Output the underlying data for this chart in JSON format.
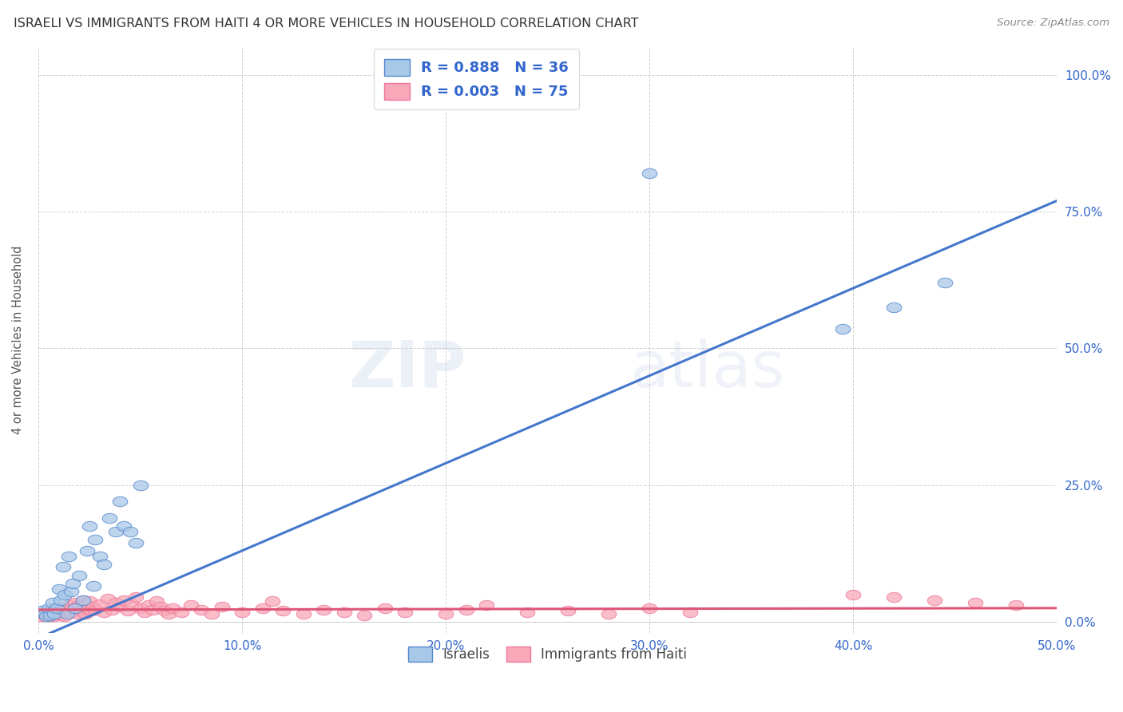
{
  "title": "ISRAELI VS IMMIGRANTS FROM HAITI 4 OR MORE VEHICLES IN HOUSEHOLD CORRELATION CHART",
  "source": "Source: ZipAtlas.com",
  "ylabel": "4 or more Vehicles in Household",
  "xlim": [
    0.0,
    0.5
  ],
  "ylim": [
    -0.02,
    1.05
  ],
  "israelis_R": "0.888",
  "israelis_N": "36",
  "haiti_R": "0.003",
  "haiti_N": "75",
  "legend_labels": [
    "Israelis",
    "Immigrants from Haiti"
  ],
  "blue_fill": "#A8C8E8",
  "pink_fill": "#F8A8B8",
  "blue_edge": "#5588CC",
  "pink_edge": "#EE7799",
  "blue_line": "#4477CC",
  "pink_line": "#DD5577",
  "legend_text_color": "#3366CC",
  "title_color": "#333333",
  "watermark_zip": "ZIP",
  "watermark_atlas": "atlas",
  "israelis_x": [
    0.002,
    0.003,
    0.004,
    0.005,
    0.006,
    0.007,
    0.008,
    0.009,
    0.01,
    0.011,
    0.012,
    0.013,
    0.014,
    0.015,
    0.016,
    0.017,
    0.018,
    0.02,
    0.022,
    0.024,
    0.025,
    0.027,
    0.028,
    0.03,
    0.032,
    0.035,
    0.038,
    0.04,
    0.042,
    0.045,
    0.048,
    0.05,
    0.3,
    0.395,
    0.42,
    0.445
  ],
  "israelis_y": [
    0.02,
    0.015,
    0.01,
    0.025,
    0.012,
    0.035,
    0.015,
    0.025,
    0.06,
    0.04,
    0.1,
    0.05,
    0.015,
    0.12,
    0.055,
    0.07,
    0.025,
    0.085,
    0.04,
    0.13,
    0.175,
    0.065,
    0.15,
    0.12,
    0.105,
    0.19,
    0.165,
    0.22,
    0.175,
    0.165,
    0.145,
    0.25,
    0.82,
    0.535,
    0.575,
    0.62
  ],
  "haiti_x": [
    0.001,
    0.002,
    0.003,
    0.004,
    0.005,
    0.006,
    0.007,
    0.008,
    0.009,
    0.01,
    0.011,
    0.012,
    0.013,
    0.014,
    0.015,
    0.016,
    0.017,
    0.018,
    0.019,
    0.02,
    0.021,
    0.022,
    0.023,
    0.024,
    0.025,
    0.026,
    0.027,
    0.028,
    0.03,
    0.032,
    0.034,
    0.036,
    0.038,
    0.04,
    0.042,
    0.044,
    0.046,
    0.048,
    0.05,
    0.052,
    0.054,
    0.056,
    0.058,
    0.06,
    0.062,
    0.064,
    0.066,
    0.07,
    0.075,
    0.08,
    0.085,
    0.09,
    0.1,
    0.11,
    0.115,
    0.12,
    0.13,
    0.14,
    0.15,
    0.16,
    0.17,
    0.18,
    0.2,
    0.21,
    0.22,
    0.24,
    0.26,
    0.28,
    0.3,
    0.32,
    0.4,
    0.42,
    0.44,
    0.46,
    0.48
  ],
  "haiti_y": [
    0.01,
    0.015,
    0.012,
    0.018,
    0.01,
    0.015,
    0.02,
    0.01,
    0.015,
    0.02,
    0.012,
    0.018,
    0.01,
    0.022,
    0.03,
    0.018,
    0.025,
    0.035,
    0.015,
    0.03,
    0.02,
    0.04,
    0.015,
    0.025,
    0.038,
    0.02,
    0.028,
    0.022,
    0.032,
    0.018,
    0.042,
    0.022,
    0.035,
    0.028,
    0.04,
    0.02,
    0.032,
    0.045,
    0.025,
    0.018,
    0.03,
    0.022,
    0.038,
    0.028,
    0.02,
    0.015,
    0.025,
    0.018,
    0.03,
    0.022,
    0.015,
    0.028,
    0.018,
    0.025,
    0.038,
    0.02,
    0.015,
    0.022,
    0.018,
    0.012,
    0.025,
    0.018,
    0.015,
    0.022,
    0.03,
    0.018,
    0.02,
    0.015,
    0.025,
    0.018,
    0.05,
    0.045,
    0.04,
    0.035,
    0.03
  ],
  "blue_trend_x": [
    0.0,
    0.5
  ],
  "blue_trend_y": [
    -0.03,
    0.77
  ],
  "pink_trend_x": [
    0.0,
    0.5
  ],
  "pink_trend_y": [
    0.022,
    0.025
  ]
}
